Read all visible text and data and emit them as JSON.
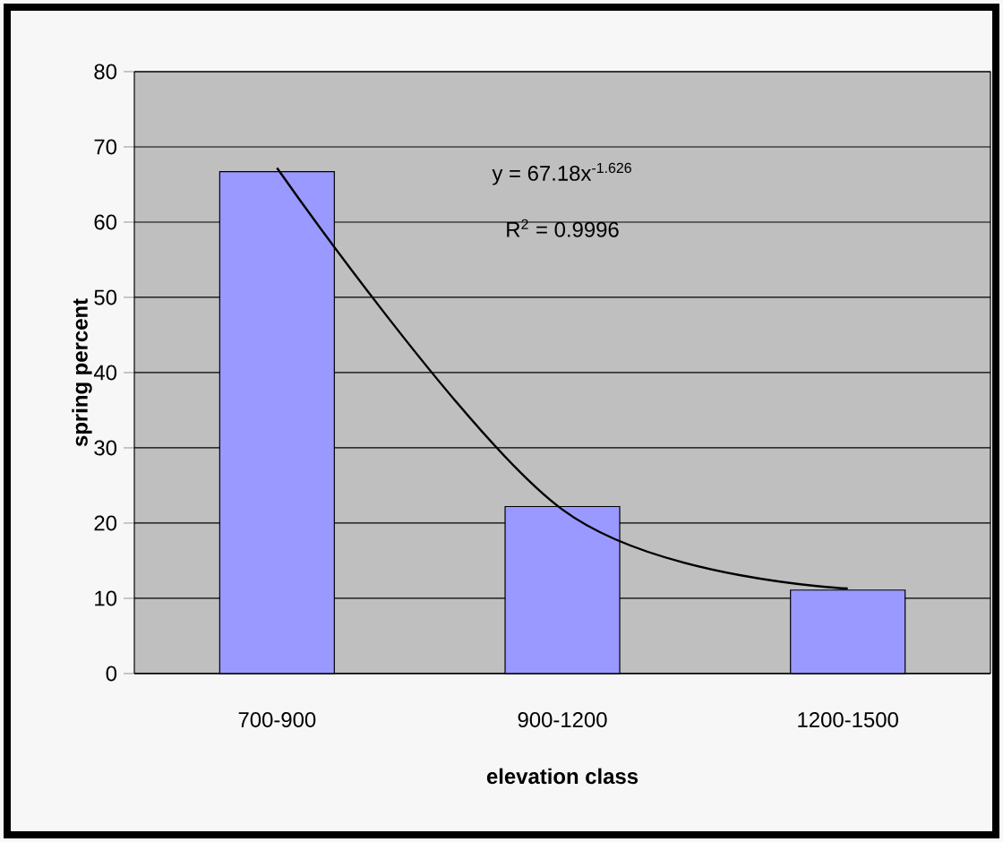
{
  "chart_data": {
    "type": "bar",
    "xlabel": "elevation class",
    "ylabel": "spring percent",
    "categories": [
      "700-900",
      "900-1200",
      "1200-1500"
    ],
    "series": [
      {
        "color": "#9999ff",
        "values": [
          66.7,
          22.2,
          11.1
        ]
      },
      {
        "type": "line",
        "color": "#000000",
        "values": [
          67.2,
          21.8,
          11.3
        ]
      }
    ],
    "ylim": [
      0,
      80
    ],
    "yticks": [
      0,
      10,
      20,
      30,
      40,
      50,
      60,
      70,
      80
    ],
    "grid": "y",
    "annotations": [
      "y = 67.18x$^{-1.626}$",
      "R$^{2}$ = 0.9996"
    ]
  }
}
